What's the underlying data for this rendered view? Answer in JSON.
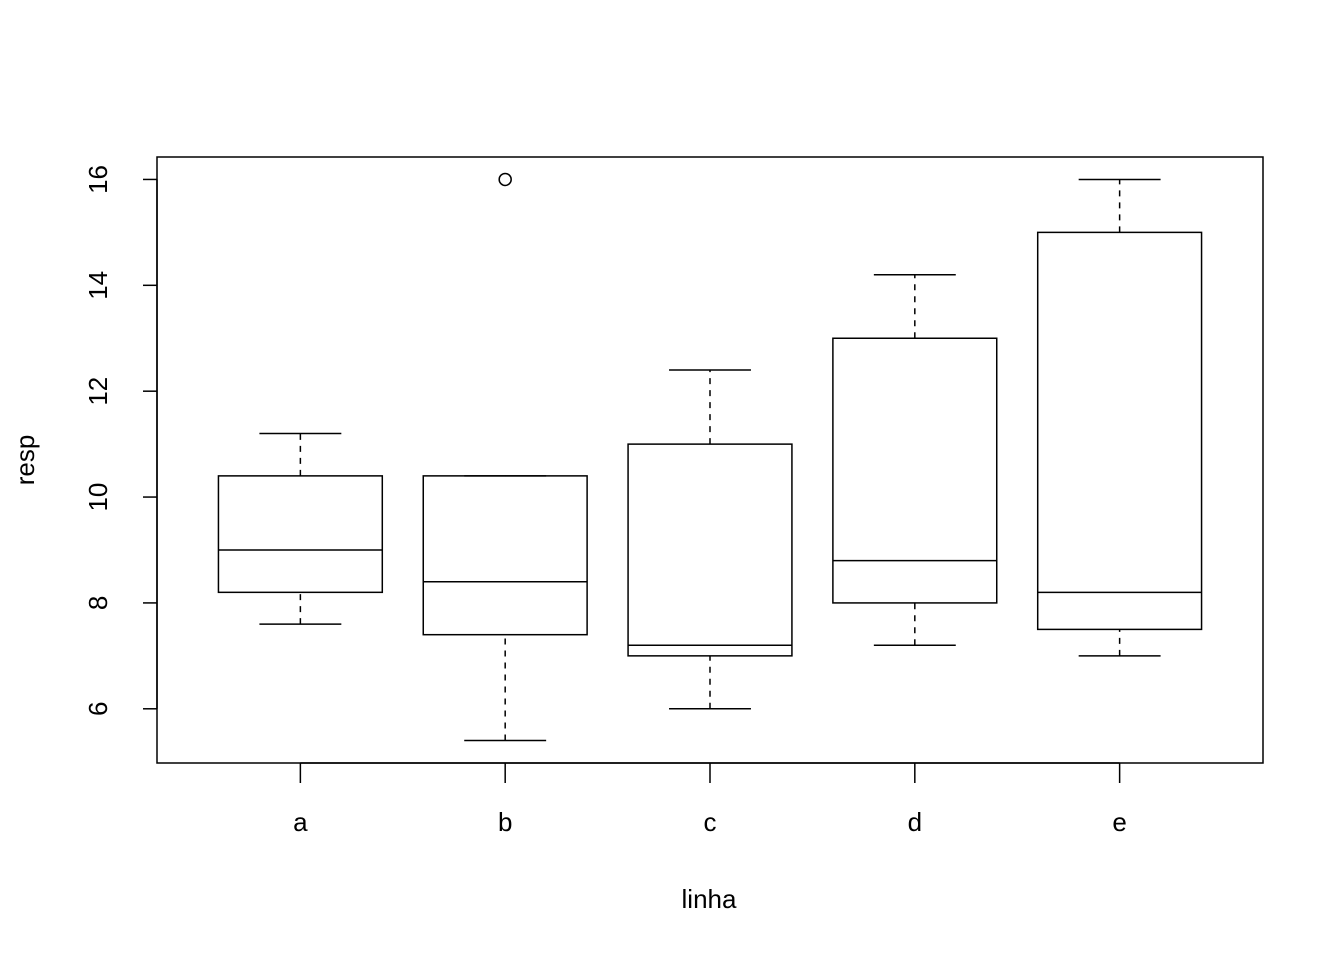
{
  "chart_data": {
    "type": "boxplot",
    "x_label": "linha",
    "y_label": "resp",
    "categories": [
      "a",
      "b",
      "c",
      "d",
      "e"
    ],
    "min": [
      7.6,
      5.4,
      6,
      7.2,
      7
    ],
    "q1": [
      8.2,
      7.4,
      7,
      8,
      7.5
    ],
    "median": [
      9,
      8.4,
      7.2,
      8.8,
      8.2
    ],
    "q3": [
      10.4,
      10.4,
      11,
      13,
      15
    ],
    "max": [
      11.2,
      10.4,
      12.4,
      14.2,
      16
    ],
    "outliers": [
      [],
      [
        16
      ],
      [],
      [],
      []
    ],
    "ylim": [
      4.976,
      16.424
    ],
    "yticks": [
      6,
      8,
      10,
      12,
      14,
      16
    ],
    "grid": false
  }
}
